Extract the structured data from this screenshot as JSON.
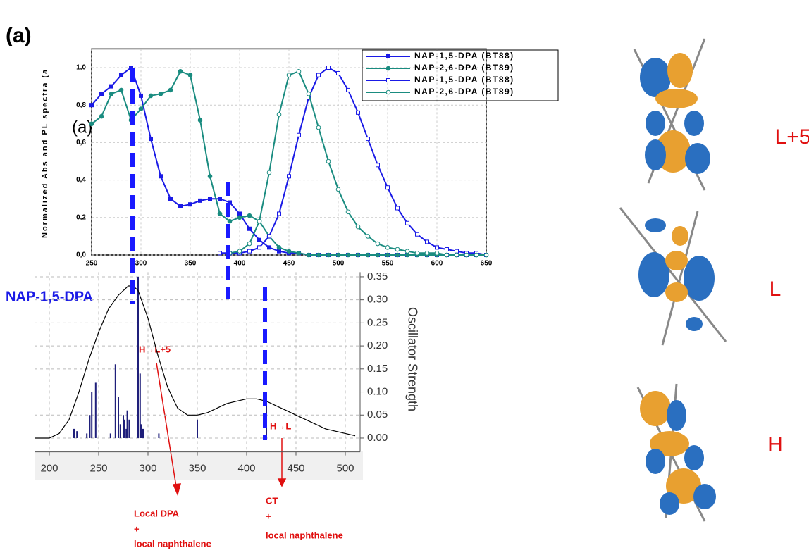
{
  "label_a": "(a)",
  "chart_data": [
    {
      "type": "line",
      "ylabel": "Normalized Abs and PL spectra (a",
      "inset_label": "(a)",
      "xlim": [
        250,
        650
      ],
      "ylim": [
        0,
        1.1
      ],
      "xticks": [
        250,
        300,
        350,
        400,
        450,
        500,
        550,
        600,
        650
      ],
      "yticks": [
        {
          "value": 0,
          "label": "0,0"
        },
        {
          "value": 0.2,
          "label": "0,2"
        },
        {
          "value": 0.4,
          "label": "0,4"
        },
        {
          "value": 0.6,
          "label": "0,6"
        },
        {
          "value": 0.8,
          "label": "0,8"
        },
        {
          "value": 1.0,
          "label": "1,0"
        }
      ],
      "x": [
        250,
        260,
        270,
        280,
        290,
        300,
        310,
        320,
        330,
        340,
        350,
        360,
        370,
        380,
        390,
        400,
        410,
        420,
        430,
        440,
        450,
        460,
        470,
        480,
        490,
        500,
        510,
        520,
        530,
        540,
        550,
        560,
        570,
        580,
        590,
        600,
        610,
        620,
        630,
        640,
        650
      ],
      "series": [
        {
          "name": "NAP-1,5-DPA (BT88)",
          "color": "#1a1ae6",
          "marker": "filled-square",
          "values": [
            0.8,
            0.86,
            0.9,
            0.96,
            1.0,
            0.85,
            0.62,
            0.42,
            0.3,
            0.26,
            0.27,
            0.29,
            0.3,
            0.3,
            0.28,
            0.22,
            0.14,
            0.08,
            0.04,
            0.02,
            0.01,
            0.01,
            0,
            0,
            0,
            0,
            0,
            0,
            0,
            0,
            0,
            0,
            0,
            0,
            0,
            0,
            0,
            0,
            0,
            0,
            0
          ]
        },
        {
          "name": "NAP-2,6-DPA (BT89)",
          "color": "#1a8c80",
          "marker": "filled-circle",
          "values": [
            0.7,
            0.74,
            0.86,
            0.88,
            0.72,
            0.78,
            0.85,
            0.86,
            0.88,
            0.98,
            0.96,
            0.72,
            0.42,
            0.22,
            0.18,
            0.2,
            0.21,
            0.18,
            0.1,
            0.04,
            0.02,
            0.01,
            0,
            0,
            0,
            0,
            0,
            0,
            0,
            0,
            0,
            0,
            0,
            0,
            0,
            0,
            0,
            0,
            0,
            0,
            0
          ]
        },
        {
          "name": "NAP-1,5-DPA (BT88)",
          "color": "#1a1ae6",
          "marker": "open-square",
          "values": [
            null,
            null,
            null,
            null,
            null,
            null,
            null,
            null,
            null,
            null,
            null,
            null,
            null,
            0.01,
            0.01,
            0.01,
            0.02,
            0.04,
            0.1,
            0.22,
            0.42,
            0.64,
            0.84,
            0.96,
            1.0,
            0.97,
            0.88,
            0.76,
            0.62,
            0.48,
            0.36,
            0.25,
            0.17,
            0.11,
            0.07,
            0.04,
            0.03,
            0.02,
            0.01,
            0.01,
            0
          ]
        },
        {
          "name": "NAP-2,6-DPA (BT89)",
          "color": "#1a8c80",
          "marker": "open-circle",
          "values": [
            null,
            null,
            null,
            null,
            null,
            null,
            null,
            null,
            null,
            null,
            null,
            null,
            null,
            null,
            0.01,
            0.02,
            0.06,
            0.18,
            0.44,
            0.75,
            0.96,
            0.98,
            0.86,
            0.68,
            0.5,
            0.35,
            0.23,
            0.15,
            0.1,
            0.06,
            0.04,
            0.03,
            0.02,
            0.01,
            0.01,
            0.01,
            0,
            0,
            0,
            0,
            0
          ]
        }
      ]
    },
    {
      "type": "line",
      "title": "NAP-1,5-DPA",
      "ylabel": "Oscillator Strength",
      "grid": true,
      "xlim": [
        185,
        515
      ],
      "ylim": [
        -0.03,
        0.36
      ],
      "xticks": [
        200,
        250,
        300,
        350,
        400,
        450,
        500
      ],
      "yticks": [
        {
          "value": 0,
          "label": "0.00"
        },
        {
          "value": 0.05,
          "label": "0.05"
        },
        {
          "value": 0.1,
          "label": "0.10"
        },
        {
          "value": 0.15,
          "label": "0.15"
        },
        {
          "value": 0.2,
          "label": "0.20"
        },
        {
          "value": 0.25,
          "label": "0.25"
        },
        {
          "value": 0.3,
          "label": "0.30"
        },
        {
          "value": 0.35,
          "label": "0.35"
        }
      ],
      "x": [
        185,
        200,
        210,
        220,
        230,
        240,
        250,
        260,
        270,
        280,
        285,
        290,
        300,
        310,
        320,
        330,
        340,
        350,
        360,
        370,
        380,
        390,
        400,
        410,
        420,
        430,
        440,
        450,
        460,
        470,
        480,
        490,
        500,
        510
      ],
      "series": [
        {
          "color": "#000000",
          "values": [
            0,
            0,
            0.01,
            0.04,
            0.1,
            0.17,
            0.23,
            0.28,
            0.31,
            0.33,
            0.33,
            0.32,
            0.26,
            0.18,
            0.11,
            0.065,
            0.05,
            0.05,
            0.055,
            0.065,
            0.075,
            0.08,
            0.085,
            0.085,
            0.08,
            0.07,
            0.06,
            0.05,
            0.04,
            0.03,
            0.02,
            0.015,
            0.01,
            0.005
          ]
        }
      ],
      "sticks": {
        "color": "#1f1f7a",
        "x": [
          225,
          228,
          238,
          241,
          243,
          247,
          262,
          267,
          270,
          272,
          275,
          276,
          278,
          279,
          281,
          290,
          292,
          293,
          295,
          311,
          350,
          420
        ],
        "values": [
          0.02,
          0.015,
          0.01,
          0.05,
          0.1,
          0.12,
          0.01,
          0.16,
          0.09,
          0.03,
          0.05,
          0.04,
          0.02,
          0.06,
          0.04,
          0.35,
          0.14,
          0.03,
          0.02,
          0.01,
          0.04,
          0.07
        ]
      }
    }
  ],
  "annotations": {
    "h_l5": "H→L+5",
    "h_l": "H→L",
    "local_dpa": [
      "Local DPA",
      "+",
      "local naphthalene"
    ],
    "ct": [
      "CT",
      "+",
      "local naphthalene"
    ]
  },
  "orbitals": [
    "L+5",
    "L",
    "H"
  ]
}
